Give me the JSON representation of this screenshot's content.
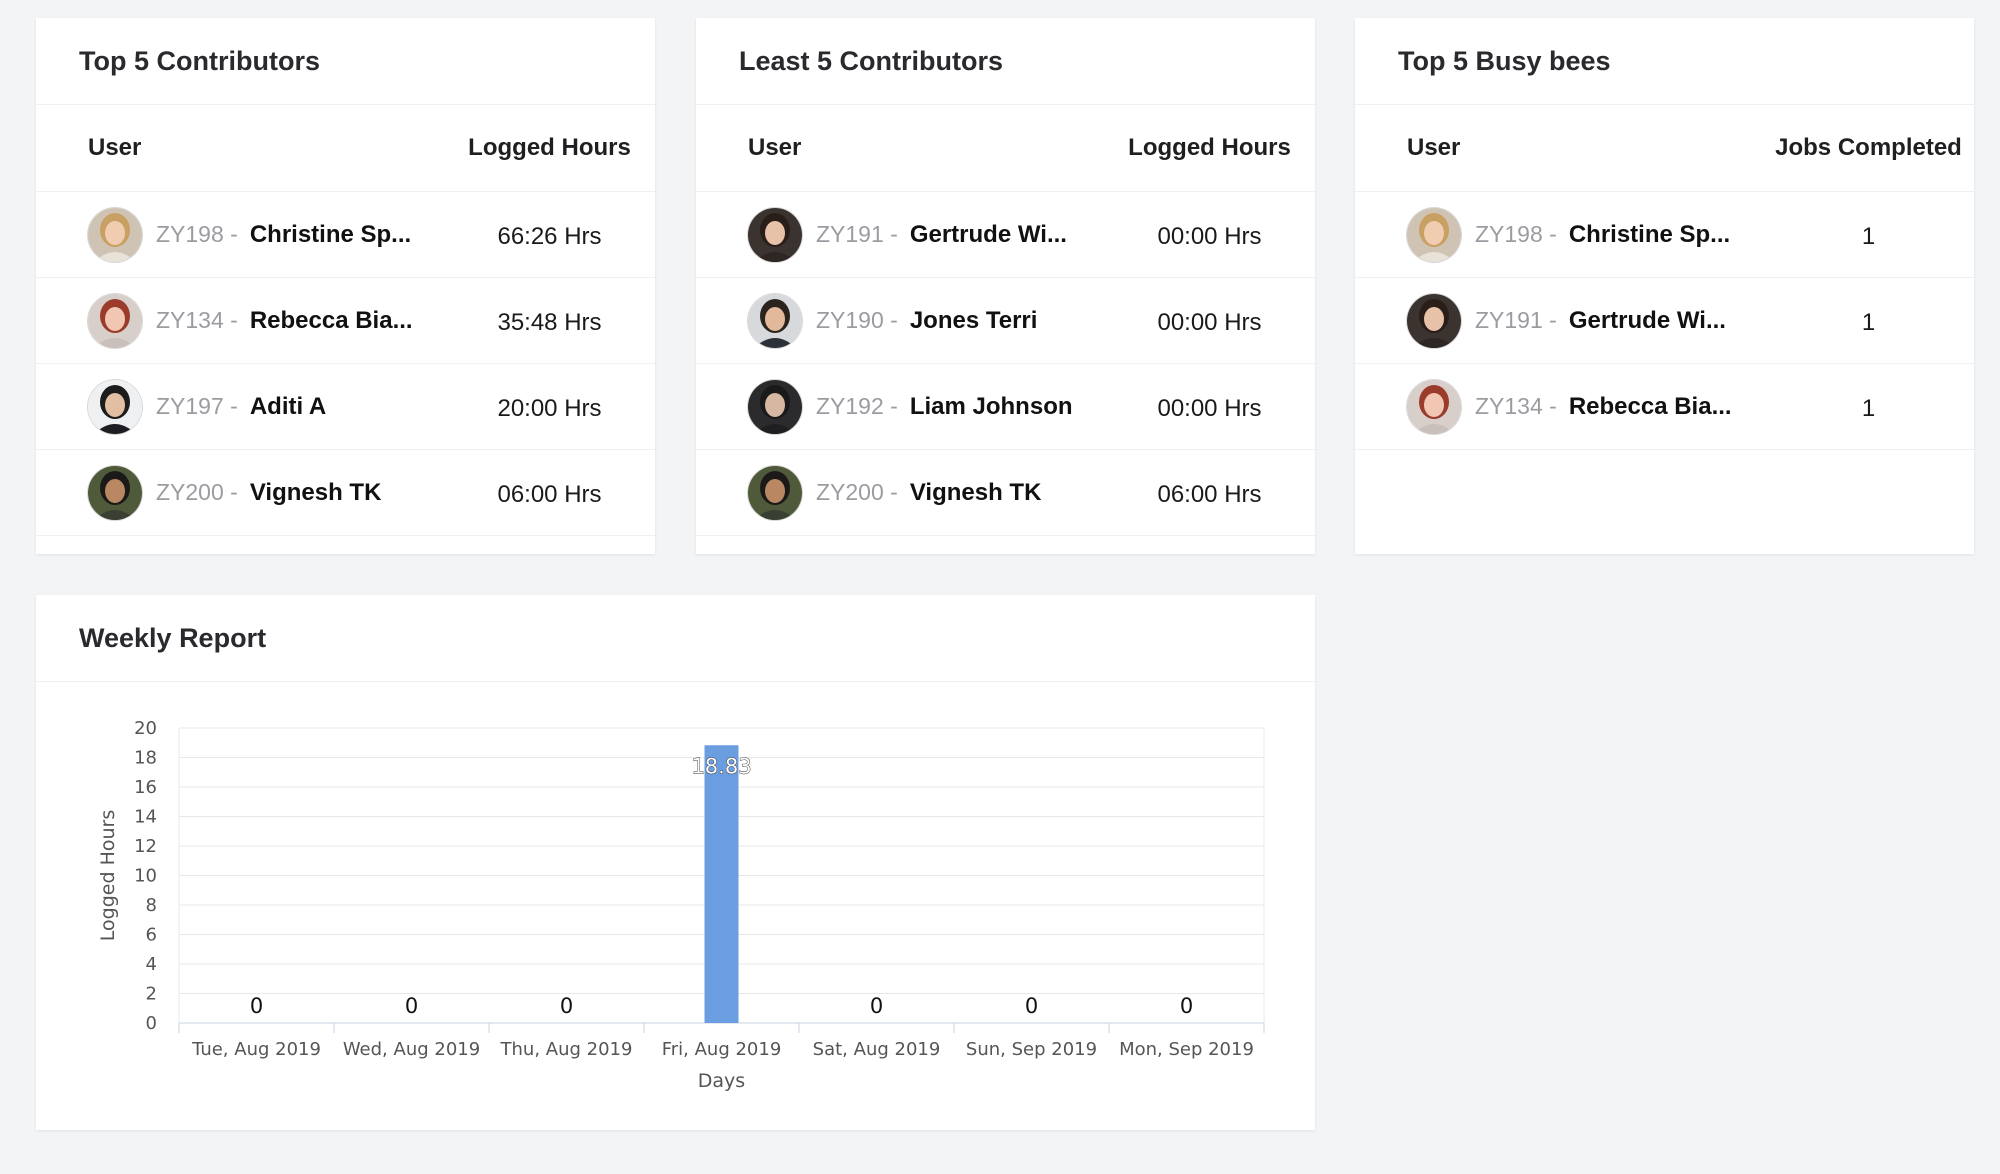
{
  "colors": {
    "background": "#f3f4f6",
    "card": "#ffffff",
    "bar": "#6a9ee0",
    "id_text": "#9a9ca1"
  },
  "top_contributors": {
    "title": "Top 5 Contributors",
    "col_user": "User",
    "col_value": "Logged Hours",
    "rows": [
      {
        "id": "ZY198 -",
        "name": "Christine Sp...",
        "value": "66:26 Hrs",
        "avatar": "avatar-blonde-woman"
      },
      {
        "id": "ZY134 -",
        "name": "Rebecca Bia...",
        "value": "35:48 Hrs",
        "avatar": "avatar-redhead-woman"
      },
      {
        "id": "ZY197 -",
        "name": "Aditi A",
        "value": "20:00 Hrs",
        "avatar": "avatar-woman-suit"
      },
      {
        "id": "ZY200 -",
        "name": "Vignesh TK",
        "value": "06:00 Hrs",
        "avatar": "avatar-man-beard"
      }
    ]
  },
  "least_contributors": {
    "title": "Least 5 Contributors",
    "col_user": "User",
    "col_value": "Logged Hours",
    "rows": [
      {
        "id": "ZY191 -",
        "name": "Gertrude Wi...",
        "value": "00:00 Hrs",
        "avatar": "avatar-dark-hair-woman"
      },
      {
        "id": "ZY190 -",
        "name": "Jones Terri",
        "value": "00:00 Hrs",
        "avatar": "avatar-man-suit"
      },
      {
        "id": "ZY192 -",
        "name": "Liam Johnson",
        "value": "00:00 Hrs",
        "avatar": "avatar-man-dark"
      },
      {
        "id": "ZY200 -",
        "name": "Vignesh TK",
        "value": "06:00 Hrs",
        "avatar": "avatar-man-beard"
      }
    ]
  },
  "busy_bees": {
    "title": "Top 5 Busy bees",
    "col_user": "User",
    "col_value": "Jobs Completed",
    "rows": [
      {
        "id": "ZY198 -",
        "name": "Christine Sp...",
        "value": "1",
        "avatar": "avatar-blonde-woman"
      },
      {
        "id": "ZY191 -",
        "name": "Gertrude Wi...",
        "value": "1",
        "avatar": "avatar-dark-hair-woman"
      },
      {
        "id": "ZY134 -",
        "name": "Rebecca Bia...",
        "value": "1",
        "avatar": "avatar-redhead-woman"
      }
    ]
  },
  "weekly": {
    "title": "Weekly Report"
  },
  "chart_data": {
    "type": "bar",
    "title": "",
    "xlabel": "Days",
    "ylabel": "Logged Hours",
    "categories": [
      "Tue, Aug 2019",
      "Wed, Aug 2019",
      "Thu, Aug 2019",
      "Fri, Aug 2019",
      "Sat, Aug 2019",
      "Sun, Sep 2019",
      "Mon, Sep 2019"
    ],
    "values": [
      0,
      0,
      0,
      18.83,
      0,
      0,
      0
    ],
    "value_labels": [
      "0",
      "0",
      "0",
      "18.83",
      "0",
      "0",
      "0"
    ],
    "ylim": [
      0,
      20
    ],
    "yticks": [
      0,
      2,
      4,
      6,
      8,
      10,
      12,
      14,
      16,
      18,
      20
    ],
    "grid": true,
    "legend": "none"
  }
}
